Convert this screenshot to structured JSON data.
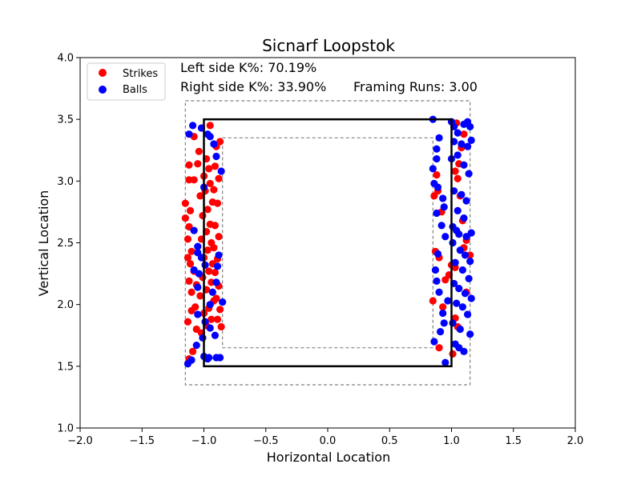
{
  "chart_data": {
    "type": "scatter",
    "title": "Sicnarf Loopstok",
    "xlabel": "Horizontal Location",
    "ylabel": "Vertical Location",
    "xlim": [
      -2.0,
      2.0
    ],
    "ylim": [
      1.0,
      4.0
    ],
    "xticks": [
      "-2.0",
      "-1.5",
      "-1.0",
      "-0.5",
      "0.0",
      "0.5",
      "1.0",
      "1.5",
      "2.0"
    ],
    "yticks": [
      "1.0",
      "1.5",
      "2.0",
      "2.5",
      "3.0",
      "3.5",
      "4.0"
    ],
    "grid": false,
    "legend": {
      "placement": "top-left",
      "entries": [
        "Strikes",
        "Balls"
      ]
    },
    "annotations": {
      "left_k": "Left side K%: 70.19%",
      "right_k": "Right side K%: 33.90%",
      "framing": "Framing Runs: 3.00"
    },
    "strike_zone": {
      "x": [
        -1.0,
        1.0
      ],
      "y": [
        1.5,
        3.5
      ]
    },
    "outer_zone": {
      "x": [
        -1.15,
        1.15
      ],
      "y": [
        1.35,
        3.65
      ]
    },
    "inner_zone": {
      "x": [
        -0.85,
        0.85
      ],
      "y": [
        1.65,
        3.35
      ]
    },
    "colors": {
      "strikes": "#ff0000",
      "balls": "#0000ff",
      "zone": "#000000",
      "shadow": "#808080"
    },
    "series": [
      {
        "name": "Strikes",
        "color": "#ff0000",
        "points": [
          [
            -1.12,
            3.13
          ],
          [
            -1.05,
            3.14
          ],
          [
            -1.08,
            3.01
          ],
          [
            -1.12,
            3.01
          ],
          [
            -1.15,
            2.82
          ],
          [
            -1.11,
            2.76
          ],
          [
            -1.15,
            2.7
          ],
          [
            -1.12,
            2.63
          ],
          [
            -1.13,
            2.53
          ],
          [
            -1.1,
            2.43
          ],
          [
            -1.13,
            2.38
          ],
          [
            -1.11,
            2.33
          ],
          [
            -1.08,
            2.27
          ],
          [
            -1.12,
            2.19
          ],
          [
            -1.06,
            2.16
          ],
          [
            -1.1,
            2.1
          ],
          [
            -1.07,
            1.98
          ],
          [
            -1.1,
            1.95
          ],
          [
            -1.13,
            1.86
          ],
          [
            -1.06,
            1.8
          ],
          [
            -1.09,
            1.62
          ],
          [
            -1.12,
            1.56
          ],
          [
            -1.08,
            3.36
          ],
          [
            -1.04,
            3.24
          ],
          [
            -0.98,
            3.18
          ],
          [
            -0.96,
            3.1
          ],
          [
            -1.0,
            3.04
          ],
          [
            -0.95,
            2.98
          ],
          [
            -0.99,
            2.92
          ],
          [
            -1.03,
            2.88
          ],
          [
            -0.93,
            2.83
          ],
          [
            -0.97,
            2.77
          ],
          [
            -1.01,
            2.72
          ],
          [
            -0.95,
            2.65
          ],
          [
            -0.98,
            2.59
          ],
          [
            -1.02,
            2.53
          ],
          [
            -0.94,
            2.5
          ],
          [
            -0.97,
            2.44
          ],
          [
            -1.0,
            2.38
          ],
          [
            -0.93,
            2.33
          ],
          [
            -0.96,
            2.27
          ],
          [
            -1.01,
            2.22
          ],
          [
            -0.94,
            2.18
          ],
          [
            -0.98,
            2.12
          ],
          [
            -1.03,
            2.07
          ],
          [
            -0.92,
            2.03
          ],
          [
            -0.96,
            1.97
          ],
          [
            -1.0,
            1.93
          ],
          [
            -0.94,
            1.88
          ],
          [
            -0.98,
            1.83
          ],
          [
            -1.02,
            1.77
          ],
          [
            -0.9,
            3.28
          ],
          [
            -0.87,
            3.32
          ],
          [
            -0.91,
            3.12
          ],
          [
            -0.88,
            3.02
          ],
          [
            -0.92,
            2.93
          ],
          [
            -0.89,
            2.82
          ],
          [
            -0.91,
            2.64
          ],
          [
            -0.88,
            2.55
          ],
          [
            -0.92,
            2.46
          ],
          [
            -0.89,
            2.37
          ],
          [
            -0.91,
            2.26
          ],
          [
            -0.88,
            2.15
          ],
          [
            -0.9,
            2.05
          ],
          [
            -0.87,
            1.96
          ],
          [
            -0.89,
            1.88
          ],
          [
            -0.86,
            1.82
          ],
          [
            -0.95,
            3.45
          ],
          [
            0.88,
            3.05
          ],
          [
            0.86,
            2.88
          ],
          [
            0.89,
            2.92
          ],
          [
            0.92,
            2.75
          ],
          [
            0.87,
            2.43
          ],
          [
            0.9,
            2.38
          ],
          [
            0.85,
            2.03
          ],
          [
            0.93,
            1.98
          ],
          [
            0.9,
            1.65
          ],
          [
            0.95,
            2.2
          ],
          [
            0.98,
            2.24
          ],
          [
            1.0,
            2.32
          ],
          [
            1.03,
            3.08
          ],
          [
            1.06,
            3.14
          ],
          [
            1.05,
            3.02
          ],
          [
            1.08,
            3.27
          ],
          [
            1.1,
            3.38
          ],
          [
            1.04,
            3.47
          ],
          [
            1.07,
            2.88
          ],
          [
            1.09,
            2.68
          ],
          [
            1.12,
            2.52
          ],
          [
            1.1,
            2.46
          ],
          [
            1.15,
            2.4
          ],
          [
            1.03,
            2.3
          ],
          [
            1.12,
            2.1
          ],
          [
            1.05,
            1.82
          ],
          [
            1.03,
            1.89
          ],
          [
            1.01,
            1.6
          ]
        ]
      },
      {
        "name": "Balls",
        "color": "#0000ff",
        "points": [
          [
            -1.12,
            3.38
          ],
          [
            -1.09,
            3.45
          ],
          [
            -1.02,
            3.43
          ],
          [
            -0.97,
            3.38
          ],
          [
            -0.95,
            3.36
          ],
          [
            -0.92,
            3.3
          ],
          [
            -0.9,
            3.2
          ],
          [
            -0.86,
            3.08
          ],
          [
            -1.0,
            2.95
          ],
          [
            -1.08,
            2.6
          ],
          [
            -1.05,
            2.47
          ],
          [
            -1.05,
            2.42
          ],
          [
            -1.02,
            2.38
          ],
          [
            -0.88,
            2.4
          ],
          [
            -0.89,
            2.31
          ],
          [
            -1.04,
            2.25
          ],
          [
            -0.9,
            2.18
          ],
          [
            -1.05,
            2.14
          ],
          [
            -0.93,
            2.1
          ],
          [
            -1.05,
            1.92
          ],
          [
            -0.99,
            1.86
          ],
          [
            -0.95,
            1.81
          ],
          [
            -1.01,
            1.73
          ],
          [
            -0.91,
            1.75
          ],
          [
            -1.06,
            1.67
          ],
          [
            -1.0,
            1.58
          ],
          [
            -0.96,
            1.57
          ],
          [
            -0.9,
            1.57
          ],
          [
            -0.87,
            1.57
          ],
          [
            -1.13,
            1.52
          ],
          [
            -0.97,
            1.56
          ],
          [
            -1.1,
            1.55
          ],
          [
            -0.95,
            2.0
          ],
          [
            -0.85,
            2.02
          ],
          [
            -1.08,
            2.28
          ],
          [
            -0.99,
            2.32
          ],
          [
            0.85,
            3.5
          ],
          [
            0.9,
            3.35
          ],
          [
            0.88,
            3.26
          ],
          [
            0.88,
            3.18
          ],
          [
            0.85,
            3.1
          ],
          [
            0.86,
            2.98
          ],
          [
            0.89,
            2.95
          ],
          [
            0.93,
            2.86
          ],
          [
            0.88,
            2.74
          ],
          [
            0.94,
            2.79
          ],
          [
            0.92,
            2.64
          ],
          [
            0.95,
            2.55
          ],
          [
            0.89,
            2.41
          ],
          [
            0.87,
            2.28
          ],
          [
            0.88,
            2.19
          ],
          [
            0.9,
            2.1
          ],
          [
            0.97,
            2.03
          ],
          [
            0.93,
            1.93
          ],
          [
            0.94,
            1.85
          ],
          [
            0.91,
            1.78
          ],
          [
            0.86,
            1.7
          ],
          [
            0.95,
            1.53
          ],
          [
            1.0,
            3.48
          ],
          [
            1.02,
            3.44
          ],
          [
            1.05,
            3.39
          ],
          [
            1.1,
            3.46
          ],
          [
            1.13,
            3.48
          ],
          [
            1.15,
            3.44
          ],
          [
            1.02,
            3.32
          ],
          [
            1.08,
            3.3
          ],
          [
            1.13,
            3.28
          ],
          [
            1.16,
            3.33
          ],
          [
            1.0,
            3.18
          ],
          [
            1.05,
            3.21
          ],
          [
            1.1,
            3.13
          ],
          [
            1.14,
            3.06
          ],
          [
            1.02,
            2.92
          ],
          [
            1.08,
            2.89
          ],
          [
            1.12,
            2.84
          ],
          [
            1.05,
            2.76
          ],
          [
            1.1,
            2.7
          ],
          [
            1.01,
            2.63
          ],
          [
            1.04,
            2.6
          ],
          [
            1.06,
            2.57
          ],
          [
            1.12,
            2.55
          ],
          [
            1.16,
            2.58
          ],
          [
            1.01,
            2.5
          ],
          [
            1.07,
            2.44
          ],
          [
            1.11,
            2.4
          ],
          [
            1.15,
            2.35
          ],
          [
            1.03,
            2.34
          ],
          [
            1.09,
            2.28
          ],
          [
            1.14,
            2.21
          ],
          [
            1.02,
            2.17
          ],
          [
            1.06,
            2.13
          ],
          [
            1.11,
            2.09
          ],
          [
            1.16,
            2.05
          ],
          [
            1.04,
            2.01
          ],
          [
            1.09,
            1.98
          ],
          [
            1.13,
            1.92
          ],
          [
            1.01,
            1.85
          ],
          [
            1.07,
            1.8
          ],
          [
            1.15,
            1.76
          ],
          [
            1.03,
            1.68
          ],
          [
            1.06,
            1.65
          ],
          [
            1.1,
            1.62
          ]
        ]
      }
    ]
  }
}
